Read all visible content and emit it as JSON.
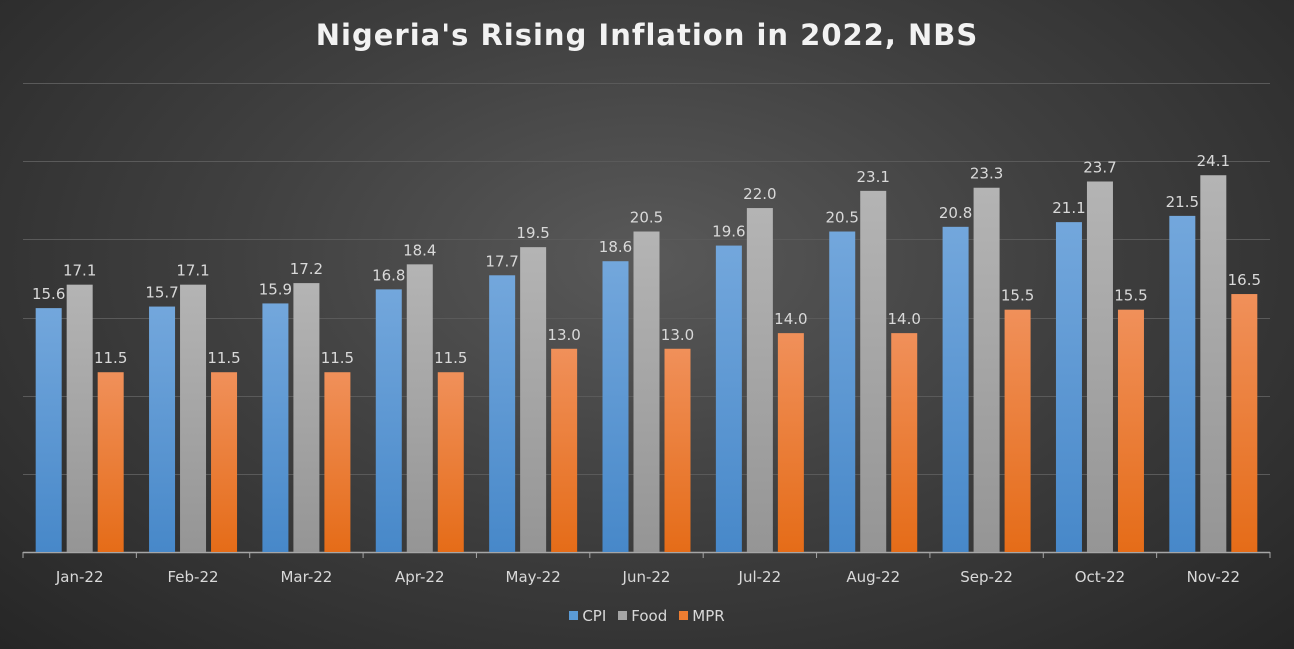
{
  "chart_data": {
    "type": "bar",
    "title": "Nigeria's Rising Inflation in 2022, NBS",
    "categories": [
      "Jan-22",
      "Feb-22",
      "Mar-22",
      "Apr-22",
      "May-22",
      "Jun-22",
      "Jul-22",
      "Aug-22",
      "Sep-22",
      "Oct-22",
      "Nov-22"
    ],
    "series": [
      {
        "name": "CPI",
        "color": "#5b9bd5",
        "values": [
          15.6,
          15.7,
          15.9,
          16.8,
          17.7,
          18.6,
          19.6,
          20.5,
          20.8,
          21.1,
          21.5
        ]
      },
      {
        "name": "Food",
        "color": "#a5a5a5",
        "values": [
          17.1,
          17.1,
          17.2,
          18.4,
          19.5,
          20.5,
          22.0,
          23.1,
          23.3,
          23.7,
          24.1
        ]
      },
      {
        "name": "MPR",
        "color": "#ed7d31",
        "values": [
          11.5,
          11.5,
          11.5,
          11.5,
          13.0,
          13.0,
          14.0,
          14.0,
          15.5,
          15.5,
          16.5
        ]
      }
    ],
    "ylim": [
      0,
      30
    ],
    "grid": true,
    "legend": "bottom",
    "data_labels": true
  }
}
